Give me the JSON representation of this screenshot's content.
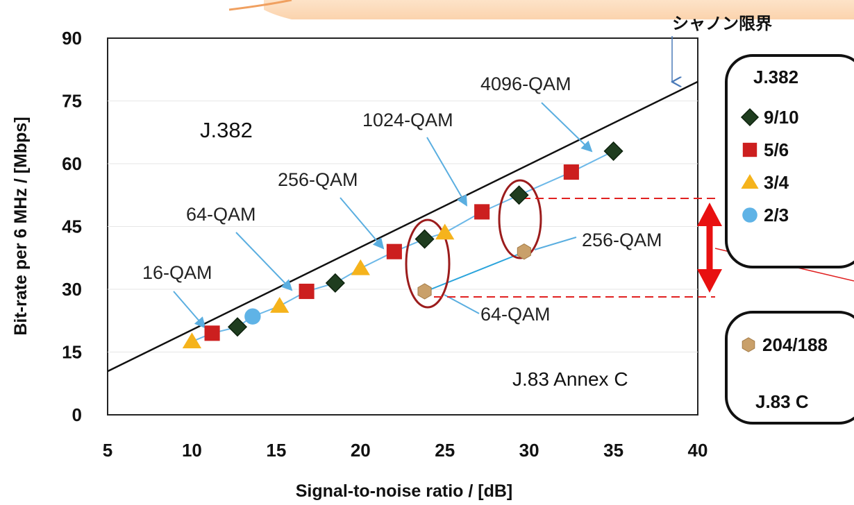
{
  "chart_data": {
    "type": "scatter",
    "xlabel": "Signal-to-noise ratio / [dB]",
    "ylabel": "Bit-rate per 6 MHz / [Mbps]",
    "xlim": [
      5,
      40
    ],
    "ylim": [
      0,
      90
    ],
    "x_ticks": [
      5,
      10,
      15,
      20,
      25,
      30,
      35,
      40
    ],
    "y_ticks": [
      0,
      15,
      30,
      45,
      60,
      75,
      90
    ],
    "grid": true,
    "shannon_label": "シャノン限界",
    "shannon_line": {
      "x": [
        5,
        40
      ],
      "y": [
        10.4,
        79.6
      ]
    },
    "series": [
      {
        "name": "9/10",
        "marker": "diamond",
        "color": "#1f3d1f",
        "x": [
          12.7,
          18.5,
          23.8,
          29.4,
          35.0
        ],
        "y": [
          21,
          31.5,
          42,
          52.5,
          63
        ]
      },
      {
        "name": "5/6",
        "marker": "square",
        "color": "#cc1f1f",
        "x": [
          11.2,
          16.8,
          22.0,
          27.2,
          32.5
        ],
        "y": [
          19.5,
          29.5,
          39,
          48.5,
          58
        ]
      },
      {
        "name": "3/4",
        "marker": "triangle",
        "color": "#f5b31c",
        "x": [
          10.0,
          15.2,
          20.0,
          25.0
        ],
        "y": [
          17.5,
          26,
          35,
          43.5
        ]
      },
      {
        "name": "2/3",
        "marker": "circle",
        "color": "#5fb3e6",
        "x": [
          13.6
        ],
        "y": [
          23.5
        ]
      },
      {
        "name": "204/188",
        "marker": "hexagon",
        "color": "#c9a06a",
        "x": [
          23.8,
          29.7
        ],
        "y": [
          29.5,
          39
        ]
      }
    ],
    "annotations": [
      {
        "text": "16-QAM"
      },
      {
        "text": "64-QAM"
      },
      {
        "text": "256-QAM"
      },
      {
        "text": "1024-QAM"
      },
      {
        "text": "4096-QAM"
      },
      {
        "text": "256-QAM"
      },
      {
        "text": "64-QAM"
      }
    ],
    "series_label_j382": "J.382",
    "series_label_j83": "J.83 Annex C"
  },
  "legend": {
    "j382": {
      "title": "J.382",
      "items": [
        "9/10",
        "5/6",
        "3/4",
        "2/3"
      ]
    },
    "j83c": {
      "title": "J.83 C",
      "items": [
        "204/188"
      ]
    }
  }
}
